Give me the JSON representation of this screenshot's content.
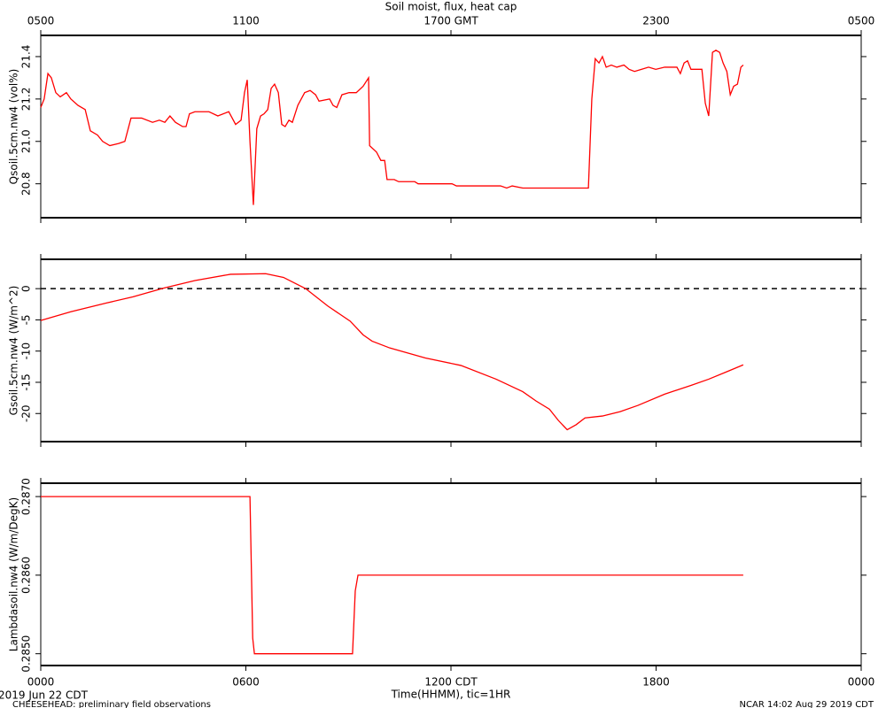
{
  "chart_data": [
    {
      "type": "line",
      "title": "Soil moist, flux, heat cap",
      "ylabel": "Qsoil.5cm.nw4 (vol%)",
      "xlim": [
        0,
        24
      ],
      "xticks": [
        {
          "value": 0,
          "label": "0500"
        },
        {
          "value": 6,
          "label": "1100"
        },
        {
          "value": 12,
          "label": "1700 GMT"
        },
        {
          "value": 18,
          "label": "2300"
        },
        {
          "value": 24,
          "label": "0500"
        }
      ],
      "ylim": [
        20.64,
        21.5
      ],
      "yticks": [
        20.8,
        {
          "value": 21,
          "label": "21.0"
        },
        21.2,
        21.4
      ],
      "x": [
        0,
        0.1,
        0.21,
        0.31,
        0.44,
        0.57,
        0.75,
        0.88,
        1.09,
        1.3,
        1.45,
        1.66,
        1.81,
        2.02,
        2.28,
        2.46,
        2.64,
        2.95,
        3.27,
        3.47,
        3.63,
        3.78,
        3.94,
        4.15,
        4.25,
        4.35,
        4.51,
        4.92,
        5.18,
        5.5,
        5.7,
        5.86,
        5.96,
        6.04,
        6.12,
        6.22,
        6.32,
        6.43,
        6.53,
        6.64,
        6.74,
        6.84,
        6.95,
        7.05,
        7.15,
        7.26,
        7.36,
        7.52,
        7.62,
        7.72,
        7.88,
        8.04,
        8.14,
        8.45,
        8.55,
        8.66,
        8.81,
        9.02,
        9.23,
        9.43,
        9.59,
        9.62,
        9.82,
        9.95,
        10.06,
        10.13,
        10.34,
        10.47,
        10.94,
        11.04,
        12.03,
        12.16,
        13.45,
        13.63,
        13.79,
        14.1,
        16.02,
        16.12,
        16.22,
        16.33,
        16.43,
        16.54,
        16.69,
        16.85,
        17.06,
        17.21,
        17.37,
        17.57,
        17.78,
        17.99,
        18.25,
        18.46,
        18.61,
        18.71,
        18.82,
        18.92,
        19.02,
        19.18,
        19.34,
        19.44,
        19.54,
        19.65,
        19.75,
        19.86,
        19.96,
        20.07,
        20.17,
        20.27,
        20.38,
        20.48,
        20.55
      ],
      "series": [
        {
          "color": "#ff0000",
          "values": [
            21.16,
            21.2,
            21.32,
            21.3,
            21.23,
            21.21,
            21.23,
            21.2,
            21.17,
            21.15,
            21.05,
            21.03,
            21.0,
            20.98,
            20.99,
            21.0,
            21.11,
            21.11,
            21.09,
            21.1,
            21.09,
            21.12,
            21.09,
            21.07,
            21.07,
            21.13,
            21.14,
            21.14,
            21.12,
            21.14,
            21.08,
            21.1,
            21.23,
            21.29,
            21.0,
            20.7,
            21.06,
            21.12,
            21.13,
            21.15,
            21.25,
            21.27,
            21.23,
            21.08,
            21.07,
            21.1,
            21.09,
            21.17,
            21.2,
            21.23,
            21.24,
            21.22,
            21.19,
            21.2,
            21.17,
            21.16,
            21.22,
            21.23,
            21.23,
            21.26,
            21.3,
            20.98,
            20.95,
            20.91,
            20.91,
            20.82,
            20.82,
            20.81,
            20.81,
            20.8,
            20.8,
            20.79,
            20.79,
            20.78,
            20.79,
            20.78,
            20.78,
            21.2,
            21.39,
            21.37,
            21.4,
            21.35,
            21.36,
            21.35,
            21.36,
            21.34,
            21.33,
            21.34,
            21.35,
            21.34,
            21.35,
            21.35,
            21.35,
            21.32,
            21.37,
            21.38,
            21.34,
            21.34,
            21.34,
            21.18,
            21.12,
            21.42,
            21.43,
            21.42,
            21.37,
            21.33,
            21.22,
            21.26,
            21.27,
            21.35,
            21.36
          ]
        }
      ]
    },
    {
      "type": "line",
      "ylabel": "Gsoil.5cm.nw4 (W/m^2)",
      "xlim": [
        0,
        24
      ],
      "ylim": [
        -24.5,
        4.7
      ],
      "yticks": [
        -20,
        -15,
        -10,
        -5,
        0
      ],
      "reference_line": 0,
      "x": [
        0,
        0.88,
        1.92,
        2.7,
        3.6,
        4.51,
        5.55,
        6.58,
        7.1,
        7.75,
        8.4,
        9.05,
        9.43,
        9.69,
        10.21,
        11.25,
        12.29,
        13.32,
        14.1,
        14.49,
        14.88,
        15.14,
        15.4,
        15.66,
        15.92,
        16.43,
        16.95,
        17.47,
        18.25,
        19.02,
        19.54,
        20.07,
        20.55
      ],
      "series": [
        {
          "color": "#ff0000",
          "values": [
            -5.1,
            -3.7,
            -2.3,
            -1.3,
            0.1,
            1.3,
            2.3,
            2.4,
            1.8,
            0,
            -2.8,
            -5.2,
            -7.4,
            -8.4,
            -9.5,
            -11.1,
            -12.3,
            -14.5,
            -16.5,
            -18.0,
            -19.3,
            -21.1,
            -22.6,
            -21.8,
            -20.7,
            -20.4,
            -19.7,
            -18.7,
            -16.9,
            -15.5,
            -14.5,
            -13.3,
            -12.2
          ]
        }
      ]
    },
    {
      "type": "line",
      "ylabel": "Lambdasoil.nw4 (W/m/DegK)",
      "xlabel": "Time(HHMM), tic=1HR",
      "xlim": [
        0,
        24
      ],
      "xticks": [
        {
          "value": 0,
          "label": "0000"
        },
        {
          "value": 6,
          "label": "0600"
        },
        {
          "value": 12,
          "label": "1200 CDT"
        },
        {
          "value": 18,
          "label": "1800"
        },
        {
          "value": 24,
          "label": "0000"
        }
      ],
      "ylim": [
        0.28485,
        0.28717
      ],
      "yticks": [
        {
          "value": 0.285,
          "label": "0.2850"
        },
        {
          "value": 0.286,
          "label": "0.2860"
        },
        {
          "value": 0.287,
          "label": "0.2870"
        }
      ],
      "x": [
        0,
        6.12,
        6.2,
        6.25,
        9.12,
        9.2,
        9.28,
        20.55
      ],
      "series": [
        {
          "color": "#ff0000",
          "values": [
            0.287,
            0.287,
            0.2852,
            0.285,
            0.285,
            0.2858,
            0.286,
            0.286
          ]
        }
      ]
    }
  ],
  "footer": {
    "date": "2019 Jun 22 CDT",
    "project": "CHEESEHEAD: preliminary field observations",
    "stamp": "NCAR 14:02 Aug 29 2019 CDT"
  }
}
